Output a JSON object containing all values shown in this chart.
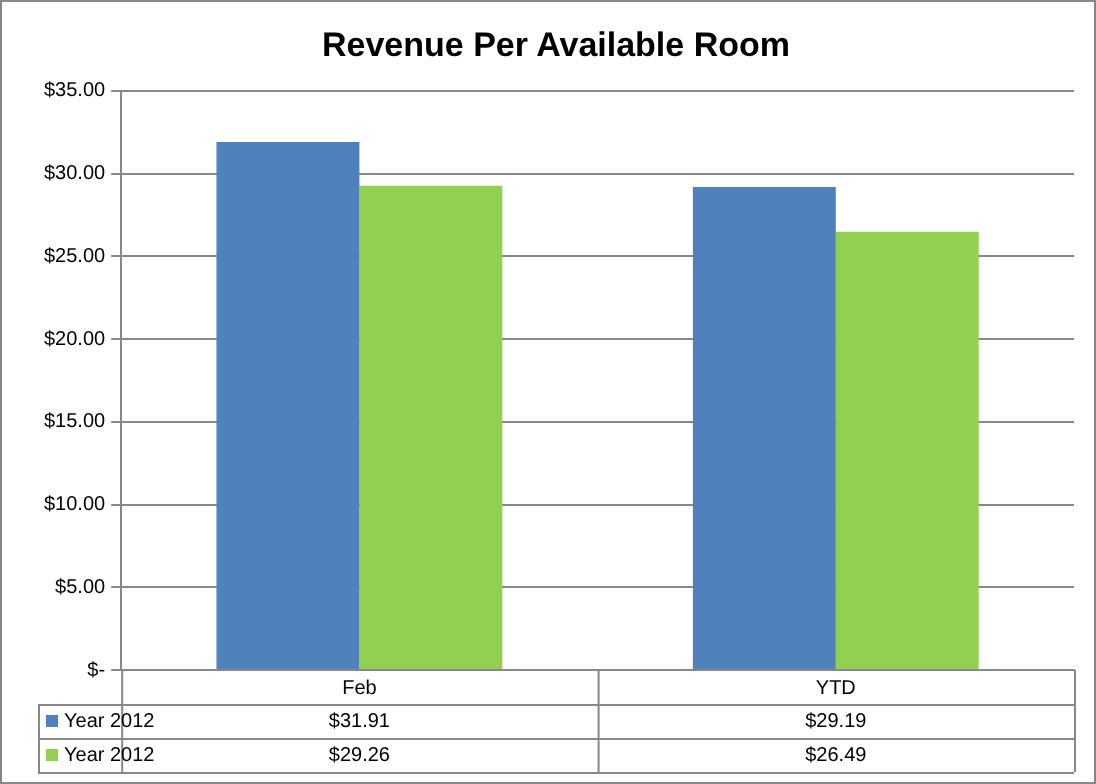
{
  "chart_data": {
    "type": "bar",
    "title": "Revenue Per Available Room",
    "categories": [
      "Feb",
      "YTD"
    ],
    "series": [
      {
        "name": "Year 2012",
        "color": "#4f81bd",
        "values": [
          31.91,
          29.19
        ],
        "value_labels": [
          "$31.91",
          "$29.19"
        ]
      },
      {
        "name": "Year 2012",
        "color": "#92d050",
        "values": [
          29.26,
          26.49
        ],
        "value_labels": [
          "$29.26",
          "$26.49"
        ]
      }
    ],
    "ylim": [
      0,
      35
    ],
    "yticks": [
      {
        "value": 0,
        "label": "$-"
      },
      {
        "value": 5,
        "label": "$5.00"
      },
      {
        "value": 10,
        "label": "$10.00"
      },
      {
        "value": 15,
        "label": "$15.00"
      },
      {
        "value": 20,
        "label": "$20.00"
      },
      {
        "value": 25,
        "label": "$25.00"
      },
      {
        "value": 30,
        "label": "$30.00"
      },
      {
        "value": 35,
        "label": "$35.00"
      }
    ],
    "grid": "y",
    "legend": "bottom left"
  }
}
